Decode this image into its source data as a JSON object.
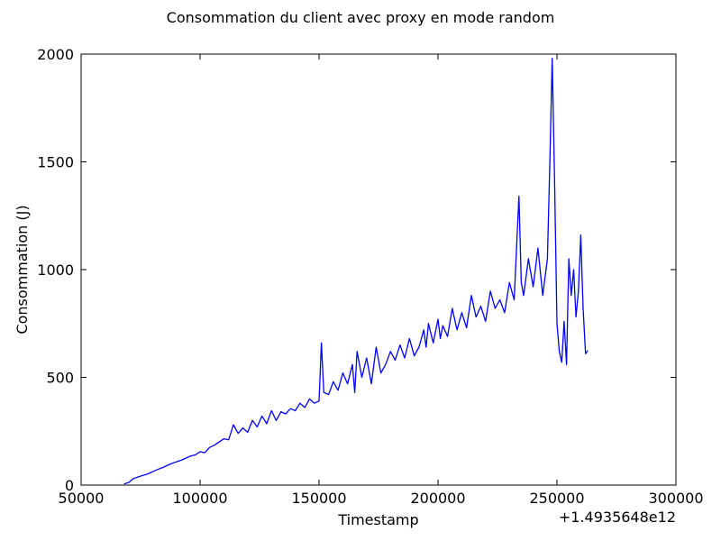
{
  "chart_data": {
    "type": "line",
    "title": "Consommation du client avec proxy en mode random",
    "xlabel": "Timestamp",
    "ylabel": "Consommation (J)",
    "x_offset_label": "+1.4935648e12",
    "xlim": [
      50000,
      300000
    ],
    "ylim": [
      0,
      2000
    ],
    "x_ticks": [
      50000,
      100000,
      150000,
      200000,
      250000,
      300000
    ],
    "x_tick_labels": [
      "50000",
      "100000",
      "150000",
      "200000",
      "250000",
      "300000"
    ],
    "y_ticks": [
      0,
      500,
      1000,
      1500,
      2000
    ],
    "y_tick_labels": [
      "0",
      "500",
      "1000",
      "1500",
      "2000"
    ],
    "grid": false,
    "series": [
      {
        "color": "#0000ff",
        "points": [
          [
            68000,
            5
          ],
          [
            70000,
            12
          ],
          [
            72000,
            30
          ],
          [
            74000,
            38
          ],
          [
            76000,
            45
          ],
          [
            78000,
            52
          ],
          [
            80000,
            62
          ],
          [
            82000,
            72
          ],
          [
            84000,
            80
          ],
          [
            86000,
            90
          ],
          [
            88000,
            100
          ],
          [
            90000,
            108
          ],
          [
            92000,
            115
          ],
          [
            94000,
            125
          ],
          [
            96000,
            135
          ],
          [
            98000,
            140
          ],
          [
            100000,
            155
          ],
          [
            102000,
            150
          ],
          [
            104000,
            175
          ],
          [
            106000,
            185
          ],
          [
            108000,
            200
          ],
          [
            110000,
            215
          ],
          [
            112000,
            210
          ],
          [
            114000,
            280
          ],
          [
            116000,
            240
          ],
          [
            118000,
            265
          ],
          [
            120000,
            245
          ],
          [
            122000,
            300
          ],
          [
            124000,
            270
          ],
          [
            126000,
            320
          ],
          [
            128000,
            285
          ],
          [
            130000,
            345
          ],
          [
            132000,
            300
          ],
          [
            134000,
            340
          ],
          [
            136000,
            330
          ],
          [
            138000,
            355
          ],
          [
            140000,
            345
          ],
          [
            142000,
            380
          ],
          [
            144000,
            360
          ],
          [
            146000,
            400
          ],
          [
            148000,
            380
          ],
          [
            150000,
            390
          ],
          [
            151000,
            660
          ],
          [
            152000,
            430
          ],
          [
            154000,
            420
          ],
          [
            156000,
            480
          ],
          [
            158000,
            440
          ],
          [
            160000,
            520
          ],
          [
            162000,
            470
          ],
          [
            164000,
            560
          ],
          [
            165000,
            430
          ],
          [
            166000,
            620
          ],
          [
            168000,
            500
          ],
          [
            170000,
            590
          ],
          [
            172000,
            470
          ],
          [
            174000,
            640
          ],
          [
            176000,
            520
          ],
          [
            178000,
            560
          ],
          [
            180000,
            620
          ],
          [
            182000,
            580
          ],
          [
            184000,
            650
          ],
          [
            186000,
            590
          ],
          [
            188000,
            680
          ],
          [
            190000,
            600
          ],
          [
            192000,
            640
          ],
          [
            194000,
            720
          ],
          [
            195000,
            640
          ],
          [
            196000,
            750
          ],
          [
            198000,
            660
          ],
          [
            200000,
            770
          ],
          [
            201000,
            680
          ],
          [
            202000,
            740
          ],
          [
            204000,
            690
          ],
          [
            206000,
            820
          ],
          [
            208000,
            720
          ],
          [
            210000,
            800
          ],
          [
            212000,
            730
          ],
          [
            214000,
            880
          ],
          [
            216000,
            780
          ],
          [
            218000,
            830
          ],
          [
            220000,
            760
          ],
          [
            222000,
            900
          ],
          [
            224000,
            820
          ],
          [
            226000,
            860
          ],
          [
            228000,
            800
          ],
          [
            230000,
            940
          ],
          [
            232000,
            860
          ],
          [
            234000,
            1340
          ],
          [
            235000,
            940
          ],
          [
            236000,
            880
          ],
          [
            238000,
            1050
          ],
          [
            240000,
            920
          ],
          [
            242000,
            1100
          ],
          [
            244000,
            880
          ],
          [
            246000,
            1050
          ],
          [
            247000,
            1500
          ],
          [
            248000,
            1980
          ],
          [
            249000,
            1400
          ],
          [
            250000,
            750
          ],
          [
            251000,
            620
          ],
          [
            252000,
            570
          ],
          [
            253000,
            760
          ],
          [
            254000,
            560
          ],
          [
            255000,
            1050
          ],
          [
            256000,
            880
          ],
          [
            257000,
            1000
          ],
          [
            258000,
            780
          ],
          [
            259000,
            900
          ],
          [
            260000,
            1160
          ],
          [
            261000,
            820
          ],
          [
            262000,
            610
          ],
          [
            263000,
            625
          ]
        ]
      }
    ]
  }
}
